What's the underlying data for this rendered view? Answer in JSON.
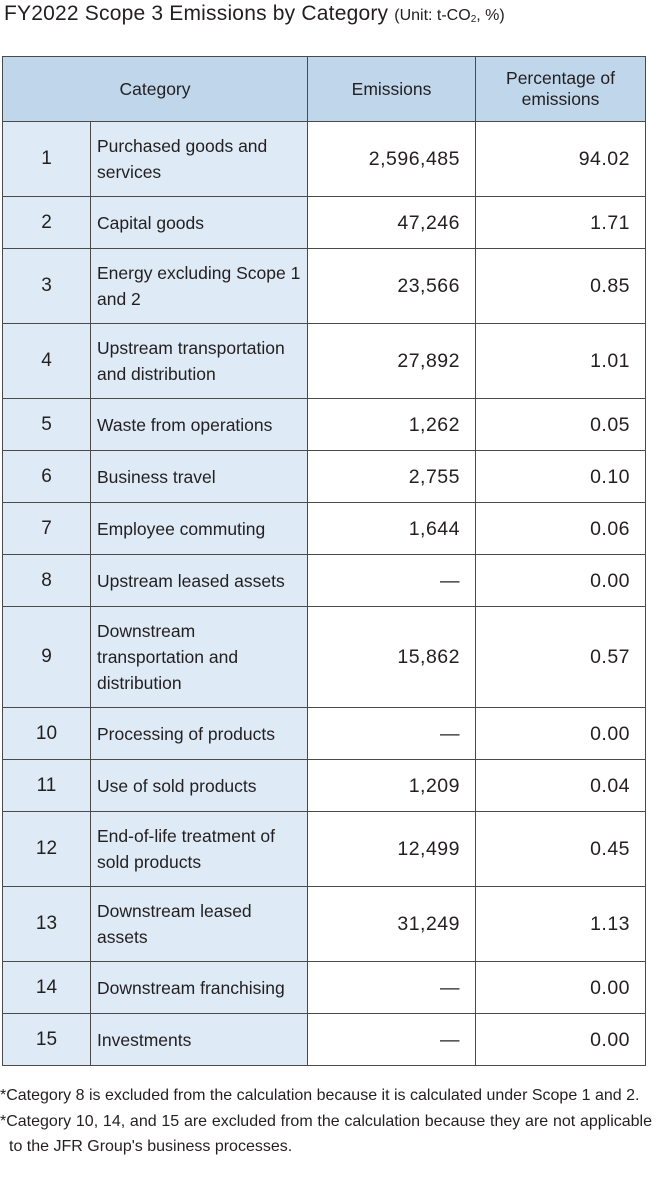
{
  "title": {
    "main": "FY2022 Scope 3 Emissions by Category",
    "unit_prefix": "(Unit: t-CO",
    "unit_sub": "2",
    "unit_suffix": ", %)"
  },
  "table": {
    "headers": {
      "category": "Category",
      "emissions": "Emissions",
      "percentage": "Percentage of emissions"
    },
    "rows": [
      {
        "no": "1",
        "name": "Purchased goods and services",
        "emissions": "2,596,485",
        "percentage": "94.02"
      },
      {
        "no": "2",
        "name": "Capital goods",
        "emissions": "47,246",
        "percentage": "1.71"
      },
      {
        "no": "3",
        "name": "Energy excluding Scope 1 and 2",
        "emissions": "23,566",
        "percentage": "0.85"
      },
      {
        "no": "4",
        "name": "Upstream transportation and distribution",
        "emissions": "27,892",
        "percentage": "1.01"
      },
      {
        "no": "5",
        "name": "Waste from operations",
        "emissions": "1,262",
        "percentage": "0.05"
      },
      {
        "no": "6",
        "name": "Business travel",
        "emissions": "2,755",
        "percentage": "0.10"
      },
      {
        "no": "7",
        "name": "Employee commuting",
        "emissions": "1,644",
        "percentage": "0.06"
      },
      {
        "no": "8",
        "name": "Upstream leased assets",
        "emissions": "—",
        "percentage": "0.00"
      },
      {
        "no": "9",
        "name": "Downstream transportation and distribution",
        "emissions": "15,862",
        "percentage": "0.57"
      },
      {
        "no": "10",
        "name": "Processing of products",
        "emissions": "—",
        "percentage": "0.00"
      },
      {
        "no": "11",
        "name": "Use of sold products",
        "emissions": "1,209",
        "percentage": "0.04"
      },
      {
        "no": "12",
        "name": "End-of-life treatment of sold products",
        "emissions": "12,499",
        "percentage": "0.45"
      },
      {
        "no": "13",
        "name": "Downstream leased assets",
        "emissions": "31,249",
        "percentage": "1.13"
      },
      {
        "no": "14",
        "name": "Downstream franchising",
        "emissions": "—",
        "percentage": "0.00"
      },
      {
        "no": "15",
        "name": "Investments",
        "emissions": "—",
        "percentage": "0.00"
      }
    ]
  },
  "notes": [
    "*Category 8 is excluded from the calculation because it is calculated under Scope 1 and 2.",
    "*Category 10, 14, and 15 are excluded from the calculation because they are not applicable to the JFR Group's business processes."
  ]
}
